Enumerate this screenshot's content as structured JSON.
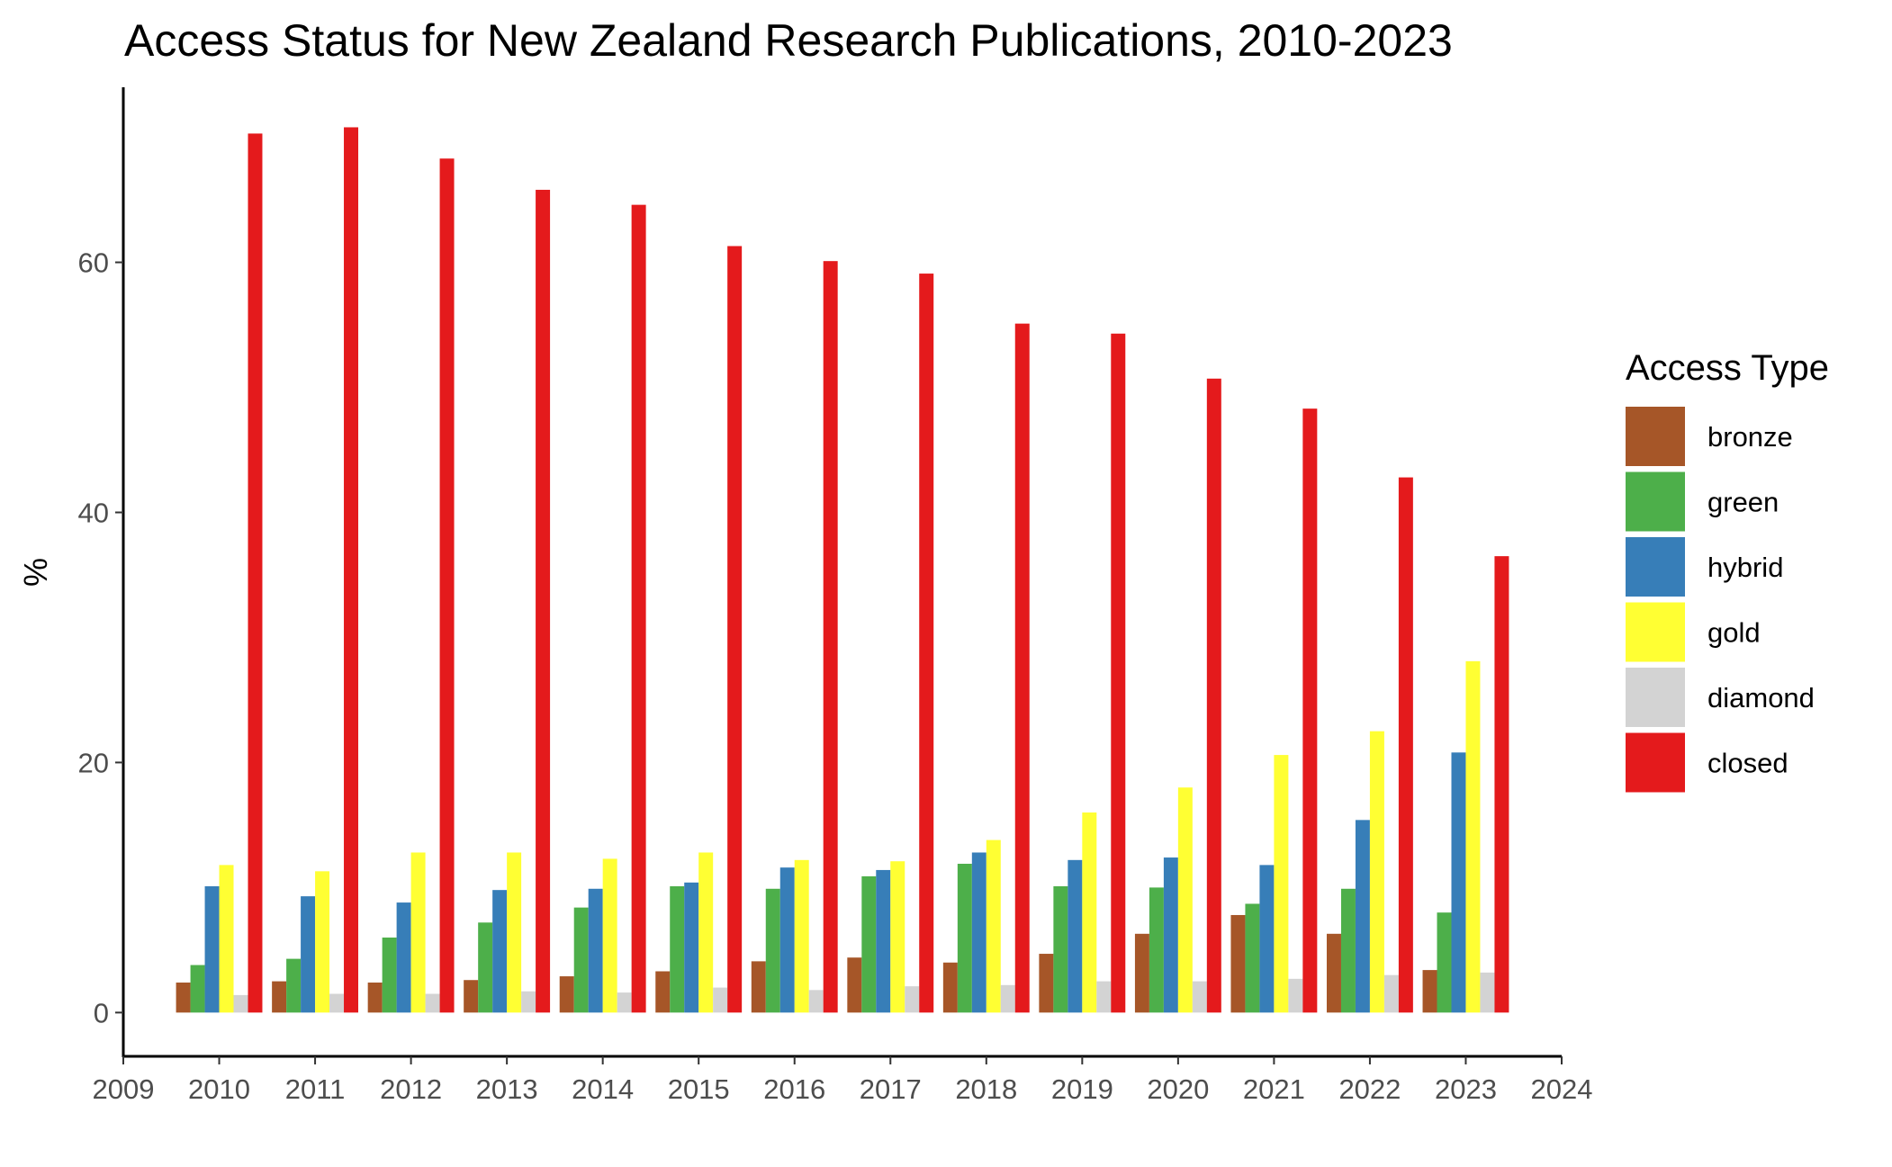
{
  "chart_data": {
    "type": "bar",
    "title": "Access Status for New Zealand Research Publications, 2010-2023",
    "xlabel": "",
    "ylabel": "%",
    "x": [
      2010,
      2011,
      2012,
      2013,
      2014,
      2015,
      2016,
      2017,
      2018,
      2019,
      2020,
      2021,
      2022,
      2023
    ],
    "x_ticks": [
      2009,
      2010,
      2011,
      2012,
      2013,
      2014,
      2015,
      2016,
      2017,
      2018,
      2019,
      2020,
      2021,
      2022,
      2023,
      2024
    ],
    "xlim": [
      2009,
      2024
    ],
    "ylim": [
      -3.5,
      74
    ],
    "y_ticks": [
      0,
      20,
      40,
      60
    ],
    "grid": false,
    "legend": {
      "title": "Access Type",
      "position": "right"
    },
    "series": [
      {
        "name": "bronze",
        "color": "#A65628",
        "values": [
          2.4,
          2.5,
          2.4,
          2.6,
          2.9,
          3.3,
          4.1,
          4.4,
          4.0,
          4.7,
          6.3,
          7.8,
          6.3,
          3.4
        ]
      },
      {
        "name": "green",
        "color": "#4DAF4A",
        "values": [
          3.8,
          4.3,
          6.0,
          7.2,
          8.4,
          10.1,
          9.9,
          10.9,
          11.9,
          10.1,
          10.0,
          8.7,
          9.9,
          8.0
        ]
      },
      {
        "name": "hybrid",
        "color": "#377EB8",
        "values": [
          10.1,
          9.3,
          8.8,
          9.8,
          9.9,
          10.4,
          11.6,
          11.4,
          12.8,
          12.2,
          12.4,
          11.8,
          15.4,
          20.8
        ]
      },
      {
        "name": "gold",
        "color": "#FFFF33",
        "values": [
          11.8,
          11.3,
          12.8,
          12.8,
          12.3,
          12.8,
          12.2,
          12.1,
          13.8,
          16.0,
          18.0,
          20.6,
          22.5,
          28.1
        ]
      },
      {
        "name": "diamond",
        "color": "#D3D3D3",
        "values": [
          1.4,
          1.5,
          1.5,
          1.7,
          1.6,
          2.0,
          1.8,
          2.1,
          2.2,
          2.5,
          2.5,
          2.7,
          3.0,
          3.2
        ]
      },
      {
        "name": "closed",
        "color": "#E41A1C",
        "values": [
          70.3,
          70.8,
          68.3,
          65.8,
          64.6,
          61.3,
          60.1,
          59.1,
          55.1,
          54.3,
          50.7,
          48.3,
          42.8,
          36.5
        ]
      }
    ]
  }
}
